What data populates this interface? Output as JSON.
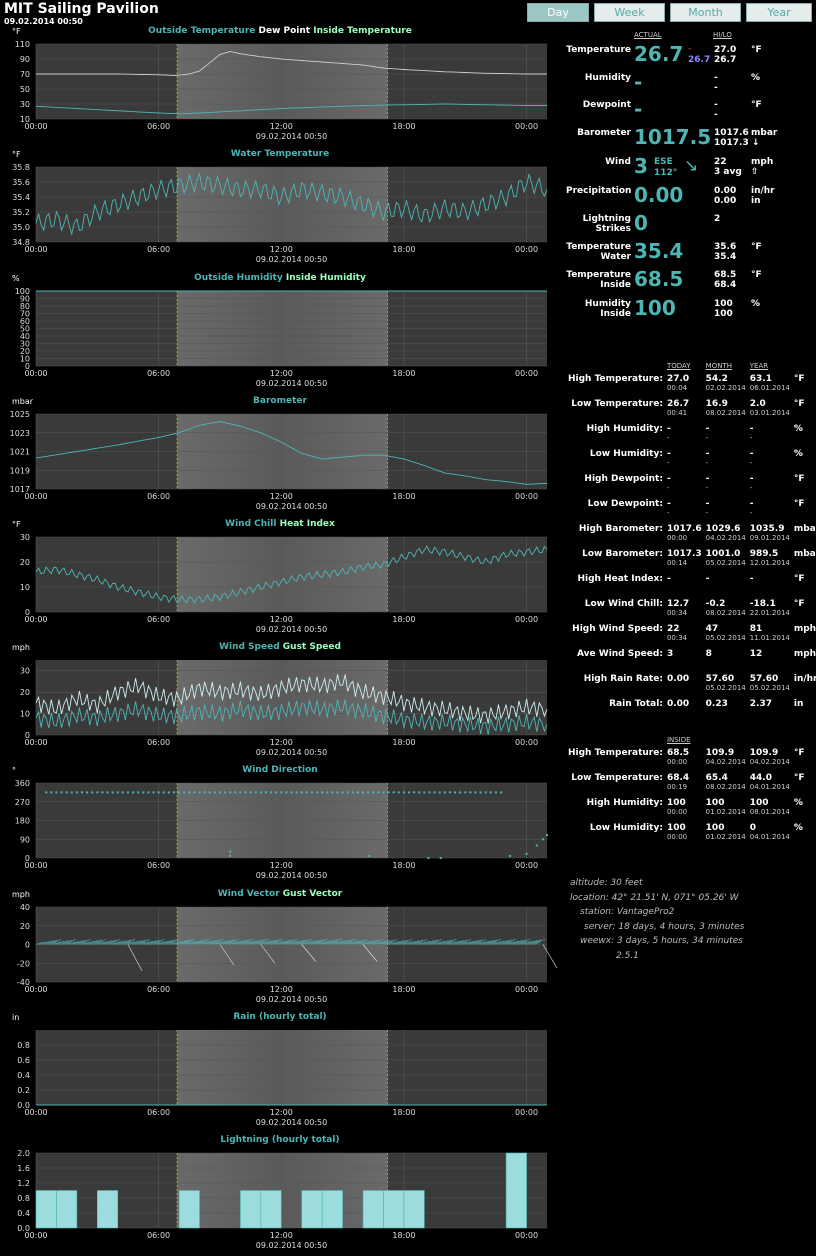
{
  "site": {
    "title": "MIT Sailing Pavilion",
    "date": "09.02.2014 00:50"
  },
  "nav": [
    "Day",
    "Week",
    "Month",
    "Year"
  ],
  "time_ticks": [
    "00:00",
    "06:00",
    "12:00",
    "18:00",
    "00:00"
  ],
  "x_caption": "09.02.2014 00:50",
  "charts": [
    {
      "id": "temp",
      "parts": [
        {
          "t": "Outside Temperature",
          "c": "#4eb5b5"
        },
        {
          "t": "Dew Point",
          "c": "#fff"
        },
        {
          "t": "Inside Temperature",
          "c": "#9fb"
        }
      ],
      "unit": "°F",
      "yticks": [
        "110",
        "90",
        "70",
        "50",
        "30",
        "10"
      ],
      "ylim": [
        10,
        110
      ],
      "series": [
        {
          "name": "Outside Temperature",
          "color": "#cfcfcf",
          "x": [
            0,
            2,
            4,
            6,
            6.8,
            7.5,
            8,
            8.5,
            9,
            9.5,
            10,
            11,
            12,
            13,
            14,
            15,
            16,
            17,
            18,
            20,
            22,
            24,
            25
          ],
          "y": [
            70,
            70,
            70,
            69,
            68,
            70,
            74,
            85,
            96,
            100,
            97,
            93,
            90,
            88,
            86,
            84,
            82,
            78,
            76,
            73,
            71,
            70,
            70
          ]
        },
        {
          "name": "Inside Temperature",
          "color": "#4eb5b5",
          "x": [
            0,
            2,
            4,
            6,
            7,
            8,
            10,
            12,
            14,
            16,
            18,
            20,
            22,
            24,
            25
          ],
          "y": [
            27,
            24,
            21,
            18,
            17,
            18,
            21,
            24,
            26,
            28,
            29,
            30,
            29,
            28,
            28
          ]
        }
      ]
    },
    {
      "id": "water",
      "parts": [
        {
          "t": "Water Temperature",
          "c": "#4eb5b5"
        }
      ],
      "unit": "°F",
      "yticks": [
        "35.8",
        "35.6",
        "35.4",
        "35.2",
        "35.0",
        "34.8"
      ],
      "ylim": [
        34.8,
        35.8
      ],
      "series": [
        {
          "name": "Water Temperature",
          "color": "#4eb5b5",
          "x": [
            0,
            1,
            2,
            3,
            4,
            5,
            6,
            7,
            8,
            9,
            10,
            11,
            12,
            13,
            14,
            15,
            16,
            17,
            18,
            19,
            20,
            21,
            22,
            23,
            24,
            25
          ],
          "y": [
            35.05,
            35.1,
            35.0,
            35.2,
            35.3,
            35.4,
            35.5,
            35.55,
            35.6,
            35.55,
            35.5,
            35.5,
            35.4,
            35.5,
            35.45,
            35.4,
            35.3,
            35.2,
            35.25,
            35.15,
            35.25,
            35.2,
            35.3,
            35.4,
            35.6,
            35.5
          ]
        }
      ]
    },
    {
      "id": "hum",
      "parts": [
        {
          "t": "Outside Humidity",
          "c": "#4eb5b5"
        },
        {
          "t": "Inside Humidity",
          "c": "#9fb"
        }
      ],
      "unit": "%",
      "yticks": [
        "100",
        "90",
        "80",
        "70",
        "60",
        "50",
        "40",
        "30",
        "20",
        "10",
        "0"
      ],
      "ylim": [
        0,
        100
      ],
      "series": [
        {
          "name": "Inside Humidity",
          "color": "#4eb5b5",
          "x": [
            0,
            25
          ],
          "y": [
            100,
            100
          ]
        }
      ]
    },
    {
      "id": "baro",
      "parts": [
        {
          "t": "Barometer",
          "c": "#4eb5b5"
        }
      ],
      "unit": "mbar",
      "yticks": [
        "1025",
        "1023",
        "1021",
        "1019",
        "1017"
      ],
      "ylim": [
        1017,
        1025
      ],
      "series": [
        {
          "name": "Barometer",
          "color": "#4eb5b5",
          "x": [
            0,
            2,
            4,
            6,
            7,
            8,
            9,
            10,
            11,
            12,
            13,
            14,
            15,
            16,
            17,
            18,
            19,
            20,
            21,
            22,
            23,
            24,
            25
          ],
          "y": [
            1020.3,
            1021.0,
            1021.7,
            1022.5,
            1023.0,
            1023.8,
            1024.2,
            1023.7,
            1023.0,
            1022.0,
            1020.8,
            1020.2,
            1020.4,
            1020.6,
            1020.6,
            1020.2,
            1019.5,
            1018.7,
            1018.4,
            1018.0,
            1017.8,
            1017.5,
            1017.6
          ]
        }
      ]
    },
    {
      "id": "chill",
      "parts": [
        {
          "t": "Wind Chill",
          "c": "#4eb5b5"
        },
        {
          "t": "Heat Index",
          "c": "#9fb"
        }
      ],
      "unit": "°F",
      "yticks": [
        "30",
        "20",
        "10",
        "0"
      ],
      "ylim": [
        0,
        30
      ],
      "series": [
        {
          "name": "Wind Chill",
          "color": "#4eb5b5",
          "x": [
            0,
            1,
            2,
            3,
            4,
            5,
            6,
            7,
            8,
            9,
            10,
            11,
            12,
            13,
            14,
            15,
            16,
            17,
            18,
            19,
            20,
            21,
            22,
            23,
            24,
            25
          ],
          "y": [
            16,
            17,
            15,
            13,
            10,
            8,
            6,
            5,
            5,
            6,
            8,
            10,
            12,
            14,
            15,
            16,
            18,
            19,
            22,
            25,
            24,
            22,
            20,
            23,
            24,
            25
          ]
        }
      ]
    },
    {
      "id": "wind",
      "parts": [
        {
          "t": "Wind Speed",
          "c": "#4eb5b5"
        },
        {
          "t": "Gust Speed",
          "c": "#9fb"
        }
      ],
      "unit": "mph",
      "yticks": [
        "30",
        "20",
        "10",
        "0"
      ],
      "ylim": [
        0,
        35
      ],
      "series": [
        {
          "name": "Gust Speed",
          "color": "#cfeeee",
          "x": [
            0,
            1,
            2,
            3,
            4,
            5,
            6,
            7,
            8,
            9,
            10,
            11,
            12,
            13,
            14,
            15,
            16,
            17,
            18,
            19,
            20,
            21,
            22,
            23,
            24,
            25
          ],
          "y": [
            15,
            12,
            17,
            14,
            20,
            23,
            18,
            17,
            22,
            20,
            21,
            19,
            22,
            24,
            23,
            25,
            20,
            18,
            15,
            13,
            12,
            10,
            9,
            11,
            13,
            12
          ]
        },
        {
          "name": "Wind Speed",
          "color": "#4eb5b5",
          "x": [
            0,
            1,
            2,
            3,
            4,
            5,
            6,
            7,
            8,
            9,
            10,
            11,
            12,
            13,
            14,
            15,
            16,
            17,
            18,
            19,
            20,
            21,
            22,
            23,
            24,
            25
          ],
          "y": [
            8,
            6,
            9,
            8,
            10,
            12,
            9,
            9,
            11,
            10,
            12,
            10,
            11,
            13,
            12,
            13,
            11,
            9,
            7,
            6,
            6,
            5,
            4,
            5,
            6,
            5
          ]
        }
      ]
    },
    {
      "id": "dir",
      "parts": [
        {
          "t": "Wind Direction",
          "c": "#4eb5b5"
        }
      ],
      "unit": "°",
      "yticks": [
        "360",
        "270",
        "180",
        "90",
        "0"
      ],
      "ylim": [
        0,
        360
      ],
      "scatter": {
        "color": "#4eb5b5",
        "x": [
          0,
          1,
          2,
          3,
          4,
          5,
          6,
          7,
          8,
          9,
          10,
          11,
          12,
          13,
          14,
          15,
          16,
          17,
          18,
          19,
          20,
          21,
          22,
          23,
          24,
          24.5,
          24.8,
          25
        ],
        "y": [
          315,
          315,
          315,
          315,
          315,
          315,
          315,
          315,
          315,
          315,
          315,
          315,
          315,
          315,
          315,
          315,
          315,
          315,
          315,
          315,
          315,
          315,
          315,
          315,
          20,
          60,
          90,
          110
        ]
      }
    },
    {
      "id": "vec",
      "parts": [
        {
          "t": "Wind Vector",
          "c": "#4eb5b5"
        },
        {
          "t": "Gust Vector",
          "c": "#9fb"
        }
      ],
      "unit": "mph",
      "yticks": [
        "40",
        "20",
        "0",
        "-20",
        "-40"
      ],
      "ylim": [
        -40,
        40
      ]
    },
    {
      "id": "rain",
      "parts": [
        {
          "t": "Rain (hourly total)",
          "c": "#4eb5b5"
        }
      ],
      "unit": "in",
      "yticks": [
        "0.8",
        "0.6",
        "0.4",
        "0.2",
        "0.0"
      ],
      "ylim": [
        0,
        1
      ],
      "series": [
        {
          "name": "Rain",
          "color": "#4eb5b5",
          "x": [
            0,
            25
          ],
          "y": [
            0,
            0
          ]
        }
      ]
    },
    {
      "id": "light",
      "parts": [
        {
          "t": "Lightning (hourly total)",
          "c": "#4eb5b5"
        }
      ],
      "unit": "",
      "yticks": [
        "2.0",
        "1.6",
        "1.2",
        "0.8",
        "0.4",
        "0.0"
      ],
      "ylim": [
        0,
        2
      ]
    }
  ],
  "chart_data": {
    "type": "bar",
    "title": "Lightning (hourly total)",
    "categories": [
      "01:00",
      "02:00",
      "04:00",
      "08:00",
      "11:00",
      "12:00",
      "14:00",
      "15:00",
      "17:00",
      "18:00",
      "19:00",
      "24:00"
    ],
    "values": [
      1,
      1,
      1,
      1,
      1,
      1,
      1,
      1,
      1,
      1,
      1,
      2
    ],
    "ylim": [
      0,
      2
    ]
  },
  "current": {
    "hdr_actual": "ACTUAL",
    "hdr_hilo": "HI/LO",
    "temp": {
      "label": "Temperature",
      "value": "26.7",
      "dash": "-",
      "small": "26.7",
      "hi": "27.0",
      "lo": "26.7",
      "unit": "°F"
    },
    "humidity": {
      "label": "Humidity",
      "value": "-",
      "hi": "-",
      "lo": "-",
      "unit": "%"
    },
    "dewpoint": {
      "label": "Dewpoint",
      "value": "-",
      "hi": "-",
      "lo": "-",
      "unit": "°F"
    },
    "baro": {
      "label": "Barometer",
      "value": "1017.5",
      "hi": "1017.6",
      "lo": "1017.3 ↓",
      "unit": "mbar"
    },
    "wind": {
      "label": "Wind",
      "value": "3",
      "dir": "ESE",
      "deg": "112°",
      "arrow": "↘",
      "hi": "22",
      "lo": "3 avg",
      "unit": "mph",
      "arrow2": "⇧"
    },
    "precip": {
      "label": "Precipitation",
      "value": "0.00",
      "hi": "0.00",
      "lo": "0.00",
      "unit": "in/hr",
      "unit2": "in"
    },
    "lightning": {
      "label": "Lightning",
      "label2": "Strikes",
      "value": "0",
      "hi": "2"
    },
    "water": {
      "label": "Temperature",
      "label2": "Water",
      "value": "35.4",
      "hi": "35.6",
      "lo": "35.4",
      "unit": "°F"
    },
    "inside": {
      "label": "Temperature",
      "label2": "Inside",
      "value": "68.5",
      "hi": "68.5",
      "lo": "68.4",
      "unit": "°F"
    },
    "ihum": {
      "label": "Humidity",
      "label2": "Inside",
      "value": "100",
      "hi": "100",
      "lo": "100",
      "unit": "%"
    }
  },
  "stats": {
    "headers": [
      "TODAY",
      "MONTH",
      "YEAR"
    ],
    "rows": [
      {
        "label": "High Temperature:",
        "v": [
          "27.0",
          "54.2",
          "63.1"
        ],
        "d": [
          "00:04",
          "02.02.2014",
          "06.01.2014"
        ],
        "u": "°F"
      },
      {
        "label": "Low Temperature:",
        "v": [
          "26.7",
          "16.9",
          "2.0"
        ],
        "d": [
          "00:41",
          "08.02.2014",
          "03.01.2014"
        ],
        "u": "°F"
      },
      {
        "label": "High Humidity:",
        "v": [
          "-",
          "-",
          "-"
        ],
        "d": [
          "-",
          "-",
          "-"
        ],
        "u": "%"
      },
      {
        "label": "Low Humidity:",
        "v": [
          "-",
          "-",
          "-"
        ],
        "d": [
          "-",
          "-",
          "-"
        ],
        "u": "%"
      },
      {
        "label": "High Dewpoint:",
        "v": [
          "-",
          "-",
          "-"
        ],
        "d": [
          "-",
          "-",
          "-"
        ],
        "u": "°F"
      },
      {
        "label": "Low Dewpoint:",
        "v": [
          "-",
          "-",
          "-"
        ],
        "d": [
          "-",
          "-",
          "-"
        ],
        "u": "°F"
      },
      {
        "label": "High Barometer:",
        "v": [
          "1017.6",
          "1029.6",
          "1035.9"
        ],
        "d": [
          "00:00",
          "04.02.2014",
          "09.01.2014"
        ],
        "u": "mbar"
      },
      {
        "label": "Low Barometer:",
        "v": [
          "1017.3",
          "1001.0",
          "989.5"
        ],
        "d": [
          "00:14",
          "05.02.2014",
          "12.01.2014"
        ],
        "u": "mbar"
      },
      {
        "label": "High Heat Index:",
        "v": [
          "-",
          "-",
          "-"
        ],
        "d": [
          "",
          "",
          ""
        ],
        "u": "°F"
      },
      {
        "label": "Low Wind Chill:",
        "v": [
          "12.7",
          "-0.2",
          "-18.1"
        ],
        "d": [
          "00:34",
          "08.02.2014",
          "22.01.2014"
        ],
        "u": "°F"
      },
      {
        "label": "High Wind Speed:",
        "v": [
          "22",
          "47",
          "81"
        ],
        "d": [
          "00:34",
          "05.02.2014",
          "11.01.2014"
        ],
        "u": "mph"
      },
      {
        "label": "Ave Wind Speed:",
        "v": [
          "3",
          "8",
          "12"
        ],
        "d": [
          "",
          "",
          ""
        ],
        "u": "mph"
      },
      {
        "label": "High Rain Rate:",
        "v": [
          "0.00",
          "57.60",
          "57.60"
        ],
        "d": [
          "",
          "05.02.2014",
          "05.02.2014"
        ],
        "u": "in/hr"
      },
      {
        "label": "Rain Total:",
        "v": [
          "0.00",
          "0.23",
          "2.37"
        ],
        "d": [
          "",
          "",
          ""
        ],
        "u": "in"
      }
    ],
    "inside_header": "INSIDE",
    "inside_rows": [
      {
        "label": "High Temperature:",
        "v": [
          "68.5",
          "109.9",
          "109.9"
        ],
        "d": [
          "00:00",
          "04.02.2014",
          "04.02.2014"
        ],
        "u": "°F"
      },
      {
        "label": "Low Temperature:",
        "v": [
          "68.4",
          "65.4",
          "44.0"
        ],
        "d": [
          "00:19",
          "08.02.2014",
          "04.01.2014"
        ],
        "u": "°F"
      },
      {
        "label": "High Humidity:",
        "v": [
          "100",
          "100",
          "100"
        ],
        "d": [
          "00:00",
          "01.02.2014",
          "08.01.2014"
        ],
        "u": "%"
      },
      {
        "label": "Low Humidity:",
        "v": [
          "100",
          "100",
          "0"
        ],
        "d": [
          "00:00",
          "01.02.2014",
          "04.01.2014"
        ],
        "u": "%"
      }
    ]
  },
  "info": [
    "altitude: 30 feet",
    "location: 42° 21.51' N, 071° 05.26' W",
    "station: VantagePro2",
    "server: 18 days, 4 hours, 3 minutes",
    "weewx: 3 days, 5 hours, 34 minutes",
    "2.5.1"
  ]
}
